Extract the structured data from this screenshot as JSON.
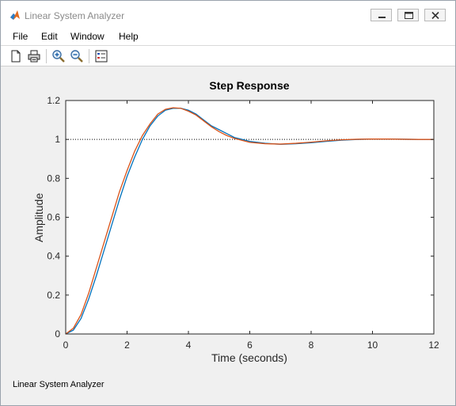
{
  "window": {
    "title": "Linear System Analyzer",
    "icon": "matlab-logo-icon",
    "controls": [
      "minimize-icon",
      "maximize-icon",
      "close-icon"
    ]
  },
  "menu": {
    "items": [
      "File",
      "Edit",
      "Window",
      "Help"
    ]
  },
  "toolbar": {
    "buttons": [
      "new-document-icon",
      "print-icon",
      "zoom-in-icon",
      "zoom-out-icon",
      "legend-icon"
    ]
  },
  "status": {
    "text": "Linear System Analyzer"
  },
  "colors": {
    "series_1": "#0072bd",
    "series_2": "#d95319",
    "reference_line": "#000000",
    "plot_background": "#ffffff",
    "figure_background": "#f0f0f0"
  },
  "chart_data": {
    "type": "line",
    "title": "Step Response",
    "xlabel": "Time (seconds)",
    "ylabel": "Amplitude",
    "xlim": [
      0,
      12
    ],
    "ylim": [
      0,
      1.2
    ],
    "xticks": [
      0,
      2,
      4,
      6,
      8,
      10,
      12
    ],
    "yticks": [
      0,
      0.2,
      0.4,
      0.6,
      0.8,
      1,
      1.2
    ],
    "grid": false,
    "reference_line": {
      "y": 1,
      "style": "dotted"
    },
    "series": [
      {
        "color": "#0072bd",
        "x": [
          0,
          0.25,
          0.5,
          0.75,
          1,
          1.25,
          1.5,
          1.75,
          2,
          2.25,
          2.5,
          2.75,
          3,
          3.25,
          3.5,
          3.75,
          4,
          4.25,
          4.5,
          4.75,
          5,
          5.25,
          5.5,
          5.75,
          6,
          6.5,
          7,
          7.5,
          8,
          8.5,
          9,
          9.5,
          10,
          10.5,
          11,
          11.5,
          12
        ],
        "y": [
          0,
          0.02,
          0.08,
          0.18,
          0.3,
          0.43,
          0.56,
          0.69,
          0.81,
          0.91,
          1,
          1.07,
          1.12,
          1.15,
          1.16,
          1.16,
          1.15,
          1.13,
          1.1,
          1.07,
          1.05,
          1.03,
          1.01,
          1.0,
          0.99,
          0.98,
          0.975,
          0.978,
          0.983,
          0.99,
          0.996,
          1.0,
          1.002,
          1.002,
          1.001,
          1.0,
          1.0
        ]
      },
      {
        "color": "#d95319",
        "x": [
          0,
          0.25,
          0.5,
          0.75,
          1,
          1.25,
          1.5,
          1.75,
          2,
          2.25,
          2.5,
          2.75,
          3,
          3.25,
          3.5,
          3.75,
          4,
          4.25,
          4.5,
          4.75,
          5,
          5.25,
          5.5,
          5.75,
          6,
          6.5,
          7,
          7.5,
          8,
          8.5,
          9,
          9.5,
          10,
          10.5,
          11,
          11.5,
          12
        ],
        "y": [
          0,
          0.03,
          0.1,
          0.21,
          0.34,
          0.47,
          0.6,
          0.73,
          0.84,
          0.94,
          1.02,
          1.08,
          1.13,
          1.155,
          1.163,
          1.16,
          1.145,
          1.125,
          1.095,
          1.065,
          1.04,
          1.02,
          1.005,
          0.995,
          0.985,
          0.978,
          0.976,
          0.98,
          0.986,
          0.993,
          0.998,
          1.001,
          1.002,
          1.002,
          1.001,
          1.0,
          1.0
        ]
      }
    ]
  }
}
